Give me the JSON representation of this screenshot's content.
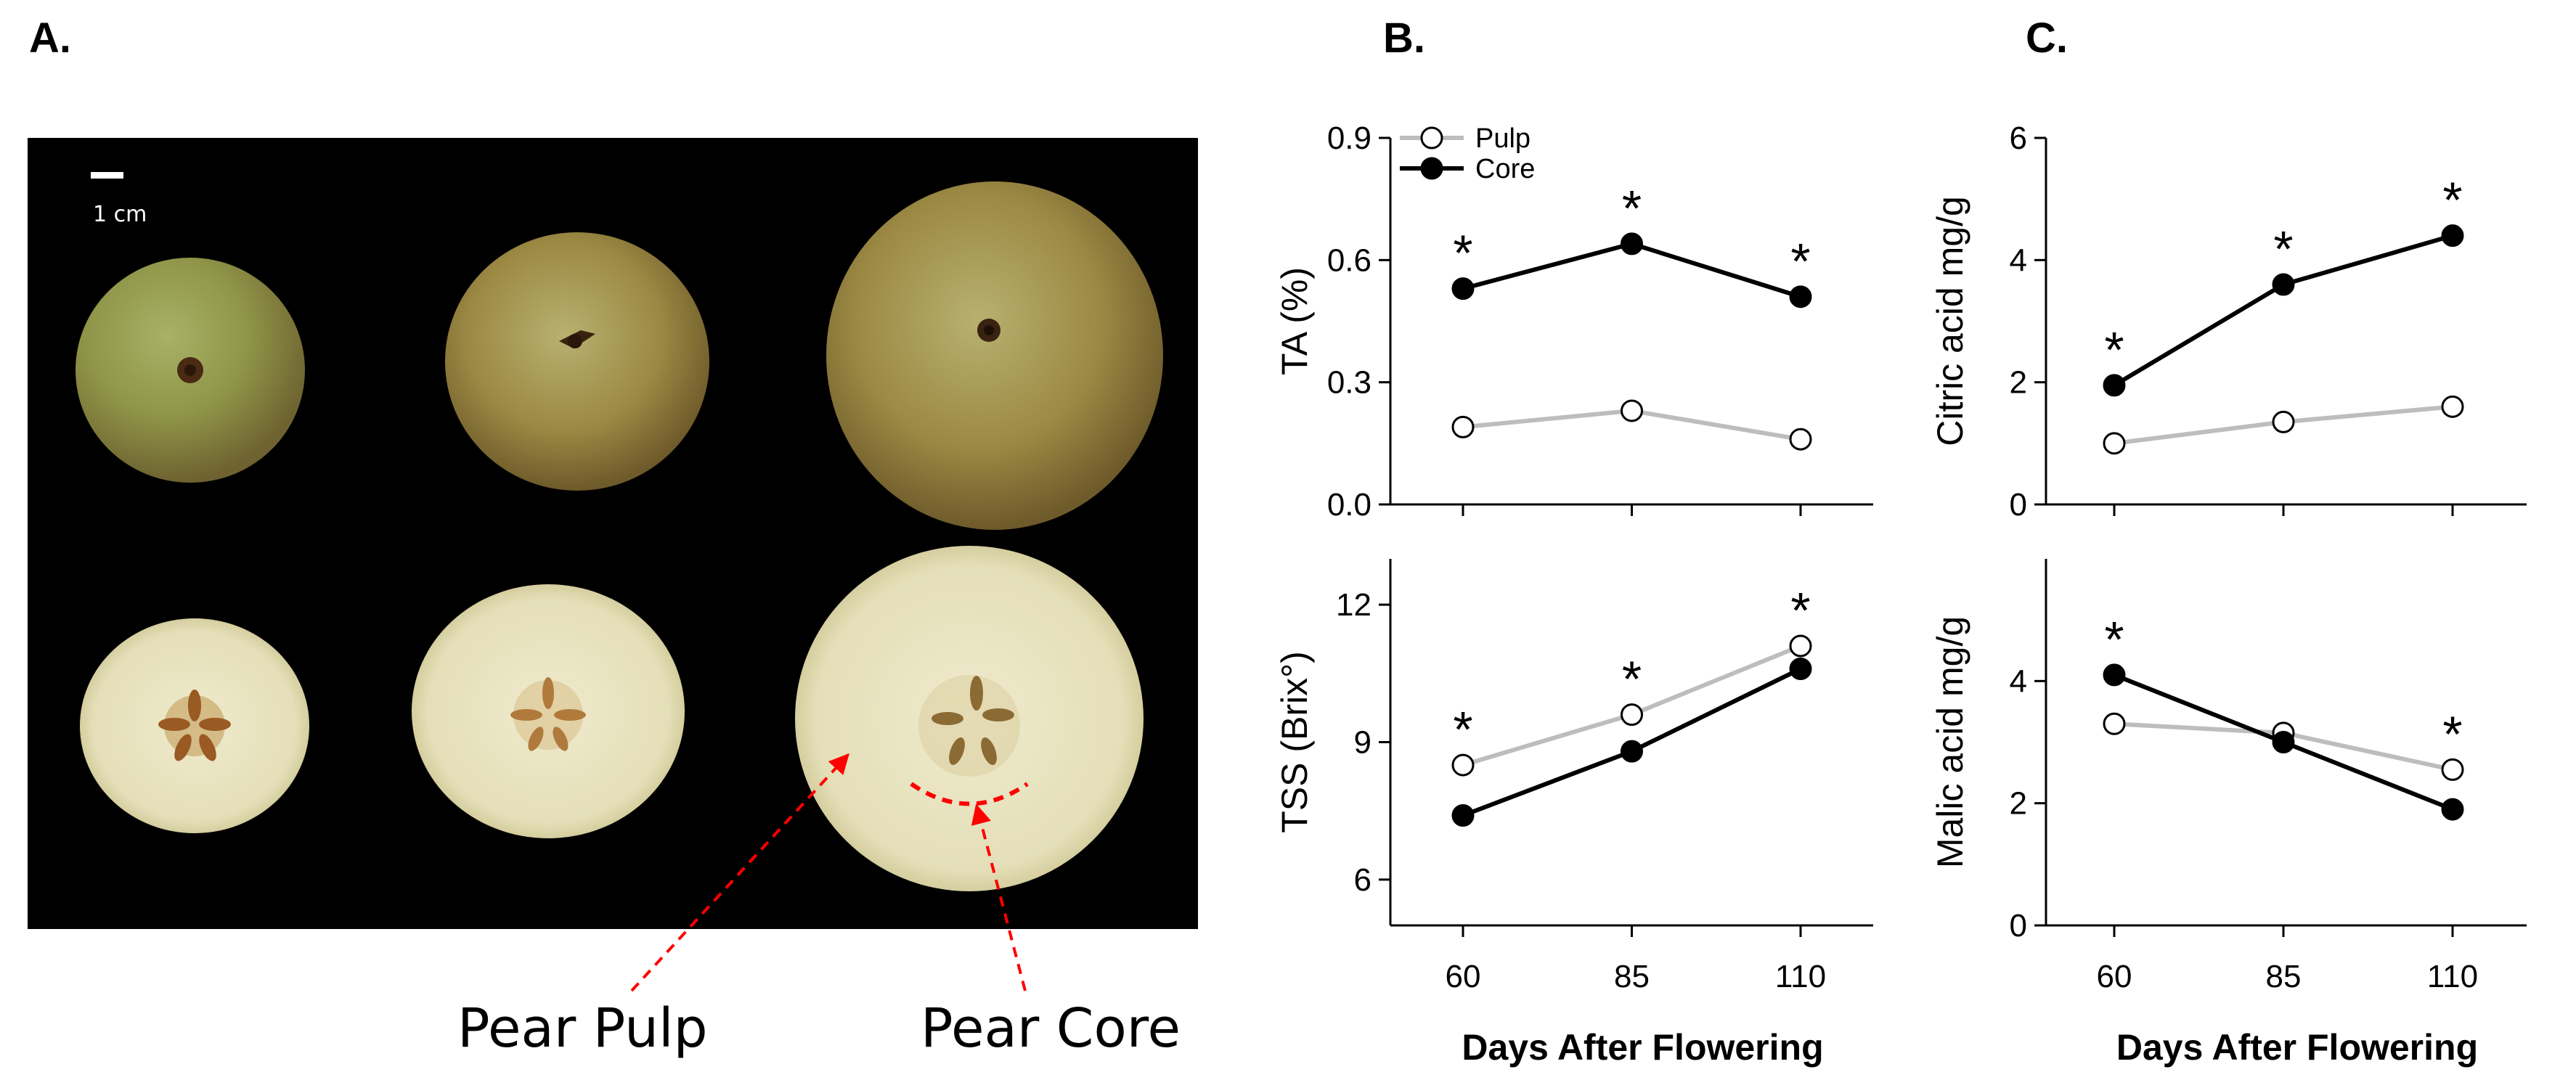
{
  "panels": {
    "a": "A.",
    "b": "B.",
    "c": "C."
  },
  "photo": {
    "scale_bar_label": "1 cm",
    "pulp_label": "Pear Pulp",
    "core_label": "Pear Core",
    "colors": {
      "background": "#000000",
      "arrow": "#ff0000",
      "skin": "#a89a4a",
      "flesh": "#ece8cc",
      "core": "#b8804a"
    }
  },
  "legend": {
    "pulp": "Pulp",
    "core": "Core"
  },
  "series_colors": {
    "pulp_line": "#bdbdbd",
    "core_line": "#000000"
  },
  "chart_data": [
    {
      "id": "ta",
      "type": "line",
      "panel": "B",
      "ylabel": "TA (%)",
      "xlabel": "",
      "x": [
        60,
        85,
        110
      ],
      "xticks": [
        "60",
        "85",
        "110"
      ],
      "ylim": [
        0,
        0.9
      ],
      "yticks": [
        "0.0",
        "0.3",
        "0.6",
        "0.9"
      ],
      "series": [
        {
          "name": "Pulp",
          "values": [
            0.19,
            0.23,
            0.16
          ]
        },
        {
          "name": "Core",
          "values": [
            0.53,
            0.64,
            0.51
          ]
        }
      ],
      "significance": [
        {
          "x": 60,
          "label": "*"
        },
        {
          "x": 85,
          "label": "*"
        },
        {
          "x": 110,
          "label": "*"
        }
      ],
      "legend_position": "top-left"
    },
    {
      "id": "tss",
      "type": "line",
      "panel": "B",
      "ylabel": "TSS (Brix°)",
      "xlabel": "Days After Flowering",
      "x": [
        60,
        85,
        110
      ],
      "xticks": [
        "60",
        "85",
        "110"
      ],
      "ylim": [
        5,
        13
      ],
      "yticks": [
        "6",
        "9",
        "12"
      ],
      "series": [
        {
          "name": "Pulp",
          "values": [
            8.5,
            9.6,
            11.1
          ]
        },
        {
          "name": "Core",
          "values": [
            7.4,
            8.8,
            10.6
          ]
        }
      ],
      "significance": [
        {
          "x": 60,
          "label": "*"
        },
        {
          "x": 85,
          "label": "*"
        },
        {
          "x": 110,
          "label": "*"
        }
      ]
    },
    {
      "id": "citric",
      "type": "line",
      "panel": "C",
      "ylabel": "Citric acid mg/g",
      "xlabel": "",
      "x": [
        60,
        85,
        110
      ],
      "xticks": [
        "60",
        "85",
        "110"
      ],
      "ylim": [
        0,
        6
      ],
      "yticks": [
        "0",
        "2",
        "4",
        "6"
      ],
      "series": [
        {
          "name": "Pulp",
          "values": [
            1.0,
            1.35,
            1.6
          ]
        },
        {
          "name": "Core",
          "values": [
            1.95,
            3.6,
            4.4
          ]
        }
      ],
      "significance": [
        {
          "x": 60,
          "label": "*"
        },
        {
          "x": 85,
          "label": "*"
        },
        {
          "x": 110,
          "label": "*"
        }
      ]
    },
    {
      "id": "malic",
      "type": "line",
      "panel": "C",
      "ylabel": "Malic acid mg/g",
      "xlabel": "Days After Flowering",
      "x": [
        60,
        85,
        110
      ],
      "xticks": [
        "60",
        "85",
        "110"
      ],
      "ylim": [
        0,
        6
      ],
      "yticks": [
        "0",
        "2",
        "4"
      ],
      "series": [
        {
          "name": "Pulp",
          "values": [
            3.3,
            3.15,
            2.55
          ]
        },
        {
          "name": "Core",
          "values": [
            4.1,
            3.0,
            1.9
          ]
        }
      ],
      "significance": [
        {
          "x": 60,
          "label": "*"
        },
        {
          "x": 110,
          "label": "*"
        }
      ]
    }
  ]
}
